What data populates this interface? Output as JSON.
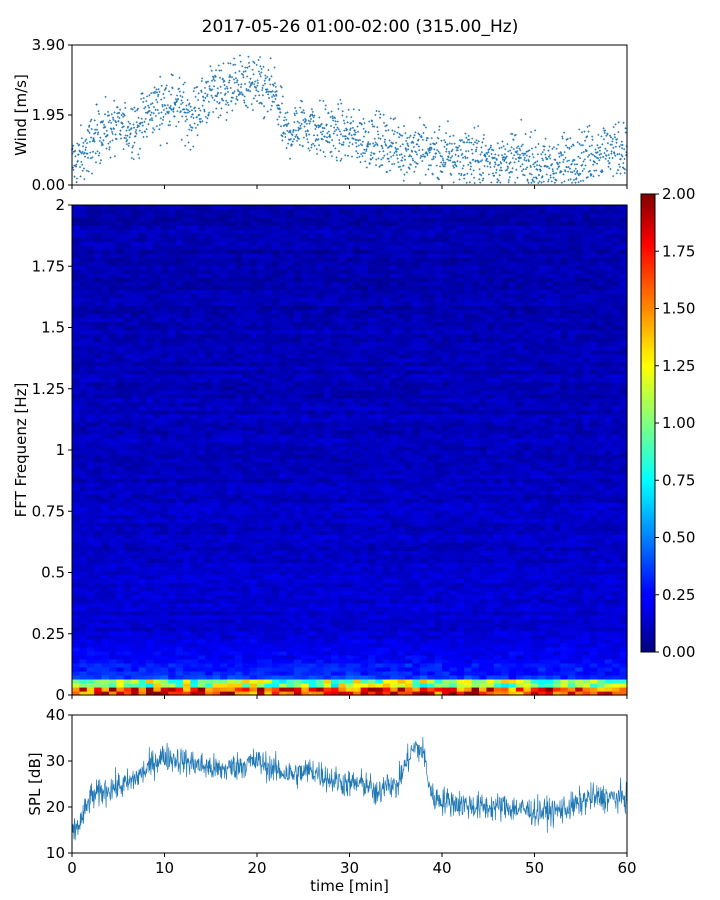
{
  "figure": {
    "title": "2017-05-26 01:00-02:00 (315.00_Hz)"
  },
  "chart_data": [
    {
      "type": "scatter",
      "name": "wind",
      "ylabel": "Wind [m/s]",
      "ylim": [
        0.0,
        3.9
      ],
      "yticks": [
        0.0,
        1.95,
        3.9
      ],
      "ytick_labels": [
        "0.00",
        "1.95",
        "3.90"
      ],
      "xlim": [
        0,
        60
      ],
      "color": "#1f77b4",
      "trend": {
        "t": [
          0,
          1,
          2,
          3,
          5,
          7,
          9,
          11,
          13,
          15,
          17,
          19,
          21,
          22,
          23,
          25,
          27,
          30,
          33,
          36,
          38,
          40,
          43,
          46,
          49,
          51,
          53,
          56,
          58,
          60
        ],
        "w": [
          0.6,
          0.8,
          1.1,
          1.5,
          1.6,
          1.6,
          2.2,
          2.3,
          1.9,
          2.6,
          2.7,
          2.8,
          2.6,
          2.5,
          1.4,
          1.7,
          1.5,
          1.4,
          1.2,
          1.0,
          1.0,
          0.8,
          0.8,
          0.7,
          0.7,
          0.5,
          0.6,
          0.9,
          1.0,
          1.0
        ]
      }
    },
    {
      "type": "heatmap",
      "name": "spectrogram",
      "ylabel": "FFT Frequenz [Hz]",
      "ylim": [
        0,
        2
      ],
      "yticks": [
        0,
        0.25,
        0.5,
        0.75,
        1,
        1.25,
        1.5,
        1.75,
        2
      ],
      "ytick_labels": [
        "0",
        "0.25",
        "0.5",
        "0.75",
        "1",
        "1.25",
        "1.5",
        "1.75",
        "2"
      ],
      "xlim": [
        0,
        60
      ],
      "colormap": "jet",
      "colorbar": {
        "range": [
          0.0,
          2.0
        ],
        "ticks": [
          0.0,
          0.25,
          0.5,
          0.75,
          1.0,
          1.25,
          1.5,
          1.75,
          2.0
        ],
        "tick_labels": [
          "0.00",
          "0.25",
          "0.50",
          "0.75",
          "1.00",
          "1.25",
          "1.50",
          "1.75",
          "2.00"
        ]
      }
    },
    {
      "type": "line",
      "name": "spl",
      "ylabel": "SPL [dB]",
      "xlabel": "time [min]",
      "ylim": [
        10,
        40
      ],
      "yticks": [
        10,
        20,
        30,
        40
      ],
      "xlim": [
        0,
        60
      ],
      "xticks": [
        0,
        10,
        20,
        30,
        40,
        50,
        60
      ],
      "color": "#1f77b4",
      "trend": {
        "t": [
          0,
          1,
          2,
          4,
          6,
          8,
          9,
          10,
          12,
          14,
          16,
          18,
          20,
          22,
          24,
          26,
          28,
          30,
          32,
          33,
          34,
          35,
          36,
          37,
          38,
          38.5,
          39,
          41,
          44,
          47,
          50,
          52,
          54,
          56,
          58,
          60
        ],
        "db": [
          14,
          17,
          22,
          24,
          25,
          28,
          30,
          31,
          30,
          29,
          28,
          29,
          30,
          28,
          27,
          28,
          26,
          25,
          25,
          22,
          26,
          24,
          29,
          33,
          32,
          26,
          22,
          21,
          20,
          20,
          19,
          19,
          20,
          22,
          22,
          22
        ]
      }
    }
  ]
}
